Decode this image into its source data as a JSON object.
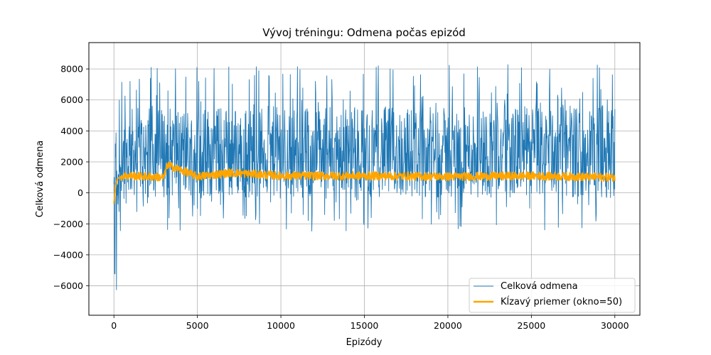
{
  "chart_data": {
    "type": "line",
    "title": "Vývoj tréningu: Odmena počas epizód",
    "xlabel": "Epizódy",
    "ylabel": "Celková odmena",
    "xlim": [
      -1500,
      31500
    ],
    "ylim": [
      -7900,
      9700
    ],
    "xticks": [
      0,
      5000,
      10000,
      15000,
      20000,
      25000,
      30000
    ],
    "yticks": [
      -6000,
      -4000,
      -2000,
      0,
      2000,
      4000,
      6000,
      8000
    ],
    "grid": true,
    "legend_position": "bottom-right",
    "series": [
      {
        "name": "Celková odmena",
        "color": "#1f77b4",
        "episodes": 30000,
        "band_x": [
          0,
          200,
          1000,
          5000,
          10000,
          15000,
          20000,
          25000,
          30000
        ],
        "typical_low": [
          -5000,
          -1500,
          -300,
          -300,
          -300,
          -300,
          -300,
          -300,
          -300
        ],
        "typical_high": [
          3500,
          5000,
          5500,
          5600,
          5600,
          5600,
          5500,
          5600,
          5600
        ],
        "max": 8800,
        "min": -7200
      },
      {
        "name": "Kĺzavý priemer (okno=50)",
        "color": "#ffa500",
        "window": 50,
        "x": [
          0,
          100,
          200,
          500,
          1000,
          3000,
          3200,
          5000,
          7000,
          10000,
          15000,
          20000,
          25000,
          30000
        ],
        "y": [
          -700,
          400,
          900,
          1100,
          1100,
          1000,
          1800,
          1050,
          1300,
          1100,
          1100,
          1050,
          1100,
          1000
        ]
      }
    ]
  }
}
